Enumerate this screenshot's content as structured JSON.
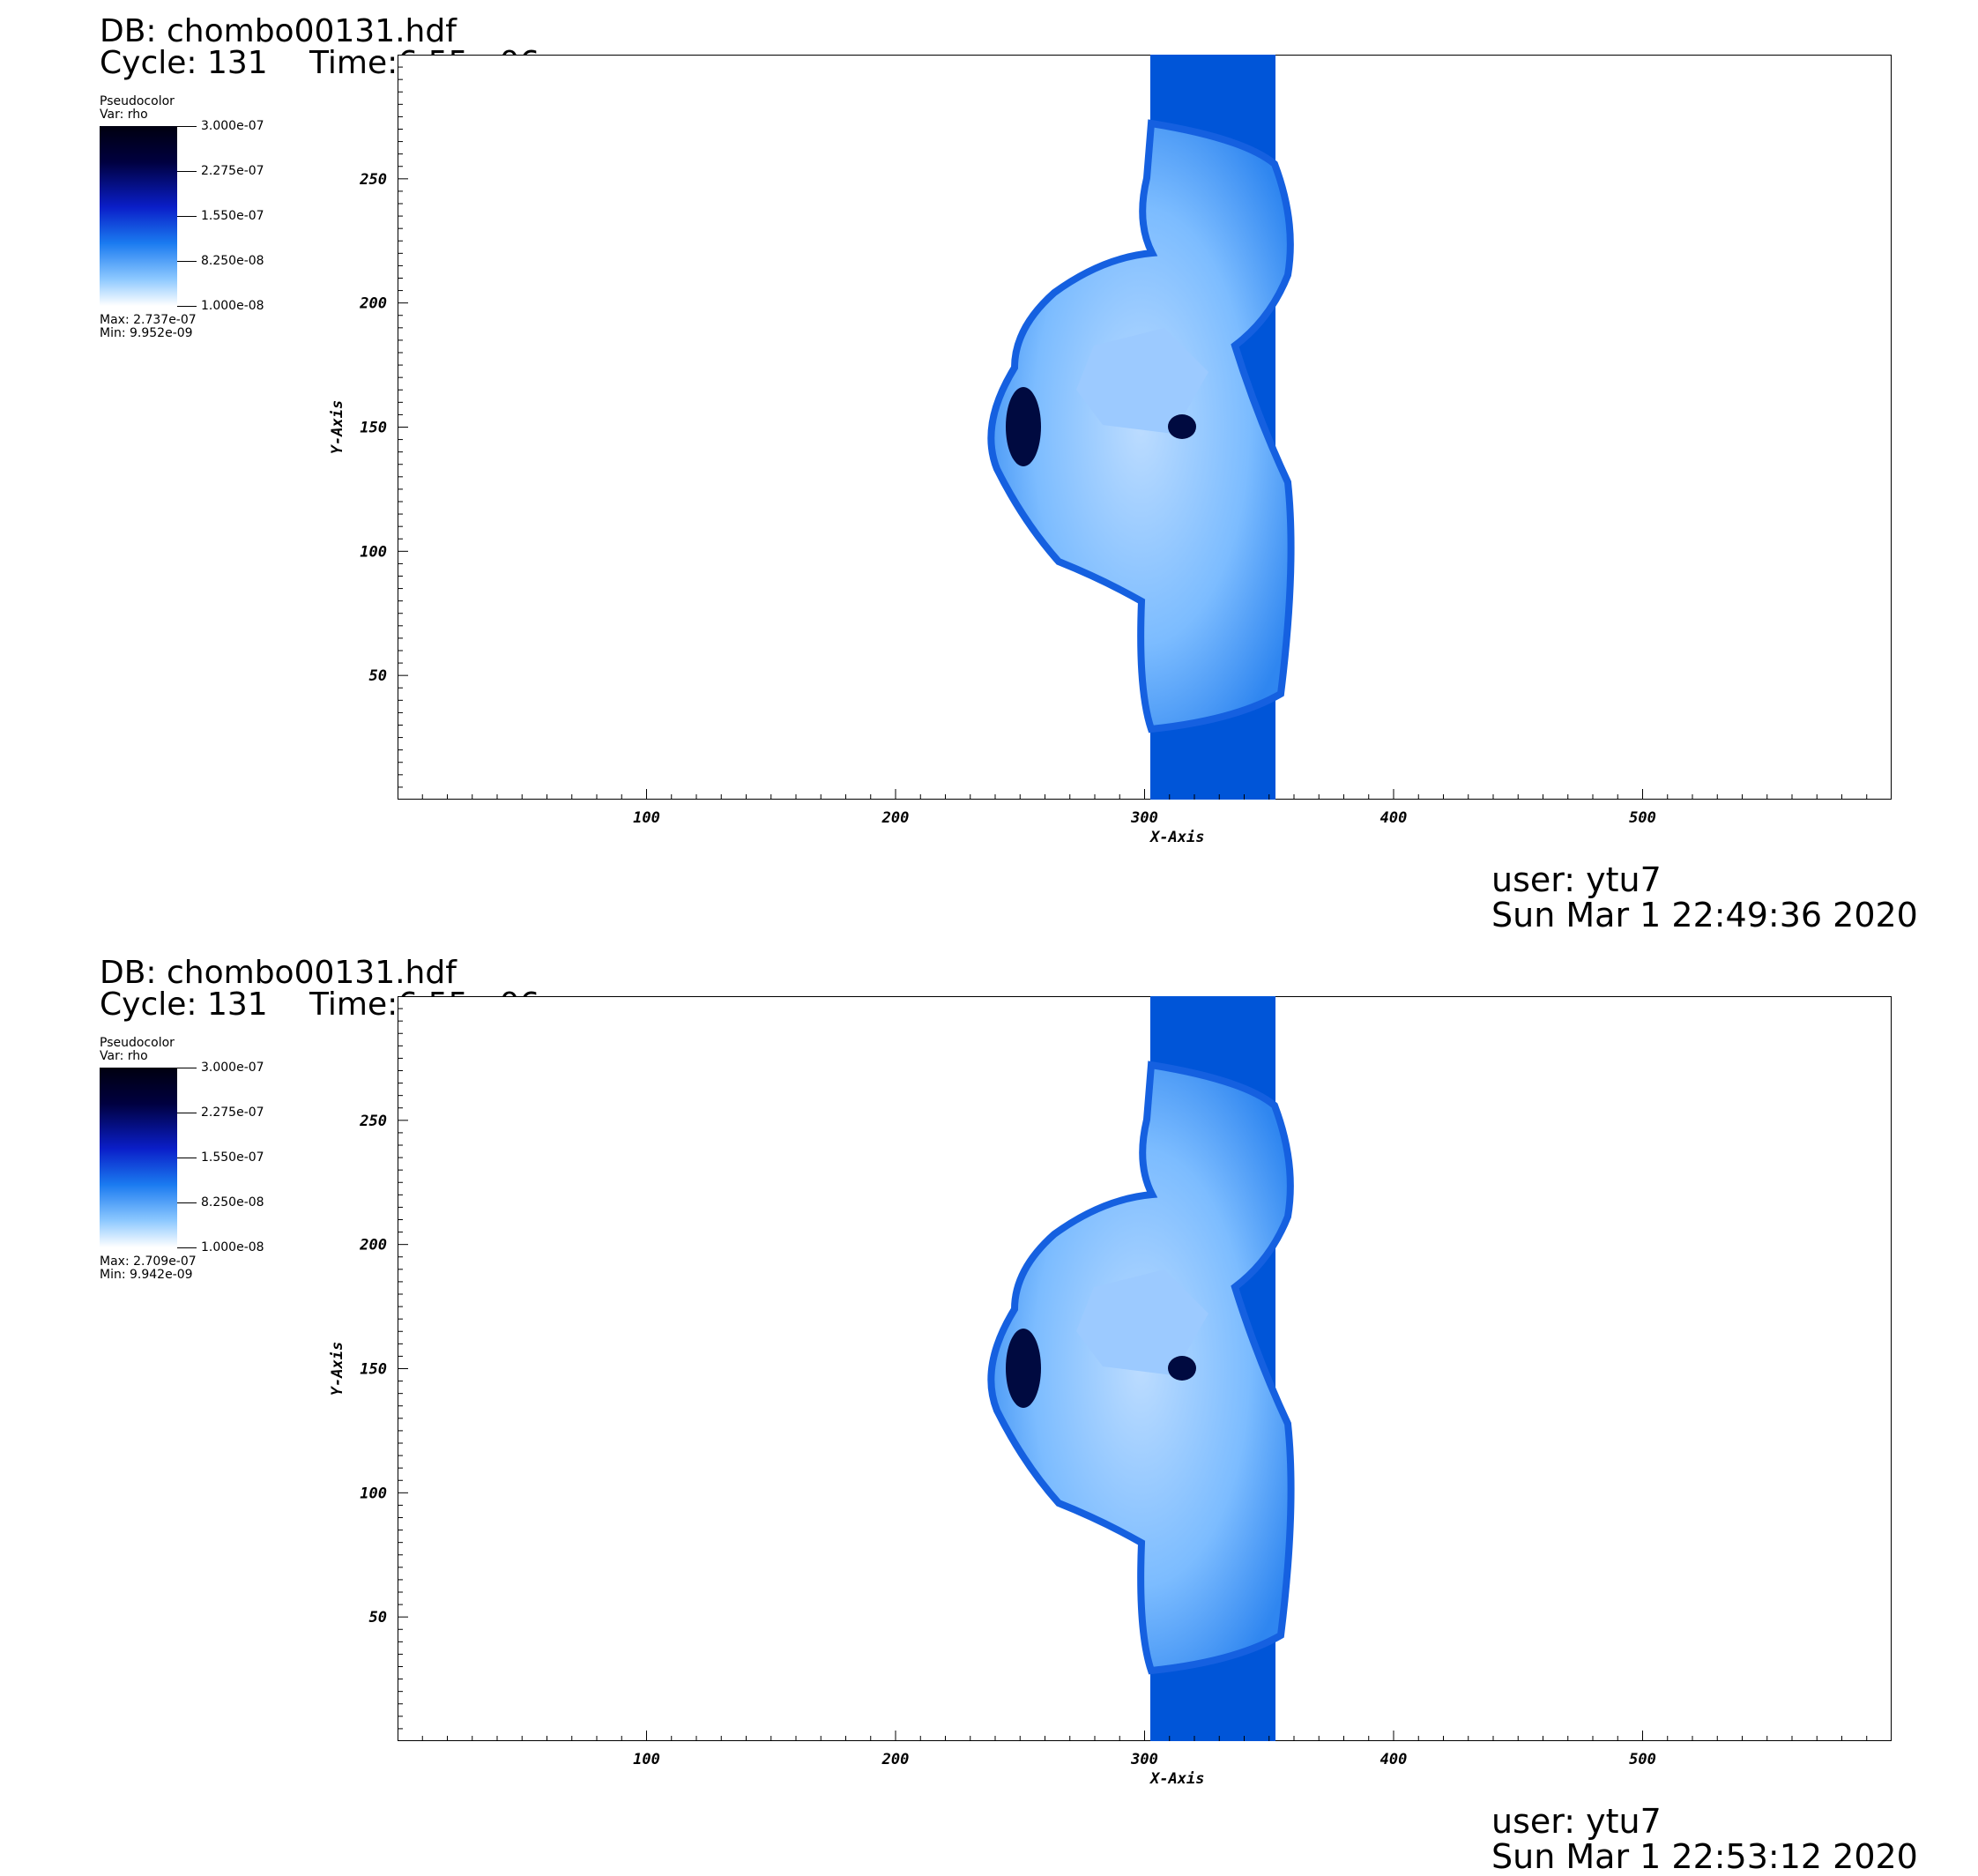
{
  "panels": [
    {
      "db_label": "DB: chombo00131.hdf",
      "cycle_label": "Cycle: 131",
      "time_label": "Time:6.55e-06",
      "legend": {
        "plot_type": "Pseudocolor",
        "var_label": "Var: rho",
        "ticks": [
          "3.000e-07",
          "2.275e-07",
          "1.550e-07",
          "8.250e-08",
          "1.000e-08"
        ],
        "max_label": "Max: 2.737e-07",
        "min_label": "Min: 9.952e-09"
      },
      "user_label": "user: ytu7",
      "date_label": "Sun Mar  1 22:49:36 2020"
    },
    {
      "db_label": "DB: chombo00131.hdf",
      "cycle_label": "Cycle: 131",
      "time_label": "Time:6.55e-06",
      "legend": {
        "plot_type": "Pseudocolor",
        "var_label": "Var: rho",
        "ticks": [
          "3.000e-07",
          "2.275e-07",
          "1.550e-07",
          "8.250e-08",
          "1.000e-08"
        ],
        "max_label": "Max: 2.709e-07",
        "min_label": "Min: 9.942e-09"
      },
      "user_label": "user: ytu7",
      "date_label": "Sun Mar  1 22:53:12 2020"
    }
  ],
  "chart_data": [
    {
      "type": "heatmap",
      "variable": "rho",
      "colormap": [
        "#ffffff",
        "#1a7af0",
        "#00003f",
        "#000010"
      ],
      "color_range": [
        1e-08,
        3e-07
      ],
      "xlabel": "X-Axis",
      "ylabel": "Y-Axis",
      "xlim": [
        0,
        600
      ],
      "ylim": [
        0,
        300
      ],
      "xticks": [
        100,
        200,
        300,
        400,
        500
      ],
      "yticks": [
        50,
        100,
        150,
        200,
        250
      ],
      "slab_x": [
        302,
        353
      ],
      "data_max": 2.737e-07,
      "data_min": 9.952e-09
    },
    {
      "type": "heatmap",
      "variable": "rho",
      "colormap": [
        "#ffffff",
        "#1a7af0",
        "#00003f",
        "#000010"
      ],
      "color_range": [
        1e-08,
        3e-07
      ],
      "xlabel": "X-Axis",
      "ylabel": "Y-Axis",
      "xlim": [
        0,
        600
      ],
      "ylim": [
        0,
        300
      ],
      "xticks": [
        100,
        200,
        300,
        400,
        500
      ],
      "yticks": [
        50,
        100,
        150,
        200,
        250
      ],
      "slab_x": [
        302,
        353
      ],
      "data_max": 2.709e-07,
      "data_min": 9.942e-09
    }
  ]
}
